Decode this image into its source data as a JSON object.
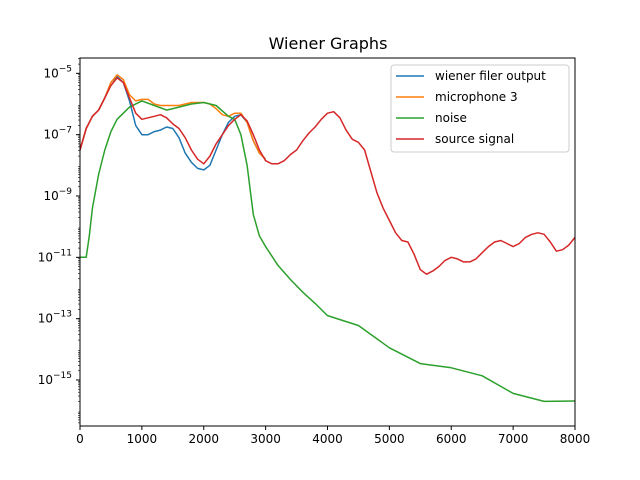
{
  "chart_data": {
    "type": "line",
    "title": "Wiener Graphs",
    "xlabel": "",
    "ylabel": "",
    "xlim": [
      0,
      8000
    ],
    "ylim_log10": [
      -16.5,
      -4.5
    ],
    "yscale": "log",
    "grid": false,
    "legend_position": "top-right",
    "x_ticks": [
      0,
      1000,
      2000,
      3000,
      4000,
      5000,
      6000,
      7000,
      8000
    ],
    "x_tick_labels": [
      "0",
      "1000",
      "2000",
      "3000",
      "4000",
      "5000",
      "6000",
      "7000",
      "8000"
    ],
    "y_ticks_log10": [
      -5,
      -7,
      -9,
      -11,
      -13,
      -15
    ],
    "y_tick_labels": [
      {
        "base": "10",
        "exp": "−5"
      },
      {
        "base": "10",
        "exp": "−7"
      },
      {
        "base": "10",
        "exp": "−9"
      },
      {
        "base": "10",
        "exp": "−11"
      },
      {
        "base": "10",
        "exp": "−13"
      },
      {
        "base": "10",
        "exp": "−15"
      }
    ],
    "series": [
      {
        "name": "wiener filer output",
        "color": "#1f77b4",
        "x": [
          0,
          100,
          200,
          300,
          400,
          500,
          600,
          700,
          800,
          900,
          1000,
          1100,
          1200,
          1300,
          1400,
          1500,
          1600,
          1700,
          1800,
          1900,
          2000,
          2100,
          2200,
          2300,
          2400,
          2500,
          2600,
          2700,
          2800,
          2900,
          3000
        ],
        "log10": [
          -7.5,
          -6.8,
          -6.4,
          -6.2,
          -5.8,
          -5.3,
          -5.1,
          -5.3,
          -5.9,
          -6.7,
          -7.0,
          -7.0,
          -6.9,
          -6.85,
          -6.75,
          -6.8,
          -7.1,
          -7.6,
          -7.9,
          -8.1,
          -8.15,
          -8.0,
          -7.5,
          -7.0,
          -6.6,
          -6.4,
          -6.35,
          -6.6,
          -7.2,
          -7.6,
          -7.8
        ]
      },
      {
        "name": "microphone 3",
        "color": "#ff7f0e",
        "x": [
          0,
          100,
          200,
          300,
          400,
          500,
          600,
          700,
          800,
          900,
          1000,
          1100,
          1200,
          1300,
          1400,
          1500,
          1600,
          1700,
          1800,
          1900,
          2000,
          2100,
          2200,
          2300,
          2400,
          2500,
          2600,
          2700,
          2800,
          2900,
          3000
        ],
        "log10": [
          -7.5,
          -6.8,
          -6.4,
          -6.2,
          -5.8,
          -5.3,
          -5.05,
          -5.2,
          -5.7,
          -5.9,
          -5.85,
          -5.85,
          -6.0,
          -6.05,
          -6.05,
          -6.05,
          -6.05,
          -6.0,
          -5.95,
          -5.95,
          -5.95,
          -6.0,
          -6.15,
          -6.35,
          -6.4,
          -6.3,
          -6.3,
          -6.6,
          -7.2,
          -7.6,
          -7.8
        ]
      },
      {
        "name": "noise",
        "color": "#2ca02c",
        "x": [
          0,
          100,
          150,
          200,
          300,
          400,
          500,
          600,
          800,
          1000,
          1200,
          1400,
          1600,
          1800,
          2000,
          2200,
          2400,
          2500,
          2600,
          2700,
          2800,
          2900,
          3000,
          3200,
          3400,
          3600,
          3800,
          4000,
          4500,
          5000,
          5500,
          6000,
          6500,
          7000,
          7500,
          8000
        ],
        "log10": [
          -11.0,
          -11.0,
          -10.3,
          -9.4,
          -8.3,
          -7.5,
          -6.9,
          -6.5,
          -6.1,
          -5.9,
          -6.05,
          -6.2,
          -6.1,
          -6.0,
          -5.95,
          -6.05,
          -6.4,
          -6.5,
          -7.0,
          -8.0,
          -9.6,
          -10.3,
          -10.7,
          -11.4,
          -11.9,
          -12.3,
          -12.6,
          -12.9,
          -13.4,
          -13.9,
          -14.3,
          -14.7,
          -15.0,
          -15.3,
          -15.6,
          -15.85
        ]
      },
      {
        "name": "source signal",
        "color": "#d62728",
        "x": [
          0,
          100,
          200,
          300,
          400,
          500,
          600,
          700,
          800,
          900,
          1000,
          1100,
          1200,
          1300,
          1400,
          1500,
          1600,
          1700,
          1800,
          1900,
          2000,
          2100,
          2200,
          2300,
          2400,
          2500,
          2600,
          2700,
          2800,
          2900,
          3000,
          3100,
          3200,
          3300,
          3400,
          3500,
          3600,
          3700,
          3800,
          3900,
          4000,
          4100,
          4200,
          4300,
          4400,
          4500,
          4600,
          4700,
          4800,
          4900,
          5000,
          5100,
          5200,
          5300,
          5400,
          5500,
          5600,
          5700,
          5800,
          5900,
          6000,
          6100,
          6200,
          6300,
          6400,
          6500,
          6600,
          6700,
          6800,
          6900,
          7000,
          7100,
          7200,
          7300,
          7400,
          7500,
          7600,
          7700,
          7800,
          7900,
          8000
        ],
        "log10": [
          -7.5,
          -6.8,
          -6.4,
          -6.2,
          -5.8,
          -5.4,
          -5.15,
          -5.3,
          -5.8,
          -6.3,
          -6.5,
          -6.45,
          -6.4,
          -6.35,
          -6.45,
          -6.65,
          -6.8,
          -7.1,
          -7.5,
          -7.8,
          -7.95,
          -7.7,
          -7.3,
          -7.0,
          -6.7,
          -6.5,
          -6.35,
          -6.55,
          -7.0,
          -7.5,
          -7.85,
          -7.95,
          -7.95,
          -7.85,
          -7.65,
          -7.5,
          -7.2,
          -6.95,
          -6.75,
          -6.5,
          -6.3,
          -6.25,
          -6.45,
          -6.85,
          -7.15,
          -7.25,
          -7.5,
          -8.2,
          -8.9,
          -9.4,
          -9.8,
          -10.2,
          -10.45,
          -10.5,
          -10.9,
          -11.4,
          -11.55,
          -11.45,
          -11.3,
          -11.1,
          -11.0,
          -11.05,
          -11.15,
          -11.15,
          -11.05,
          -10.85,
          -10.65,
          -10.5,
          -10.45,
          -10.55,
          -10.65,
          -10.55,
          -10.35,
          -10.25,
          -10.2,
          -10.25,
          -10.5,
          -10.8,
          -10.75,
          -10.6,
          -10.35
        ]
      }
    ]
  }
}
